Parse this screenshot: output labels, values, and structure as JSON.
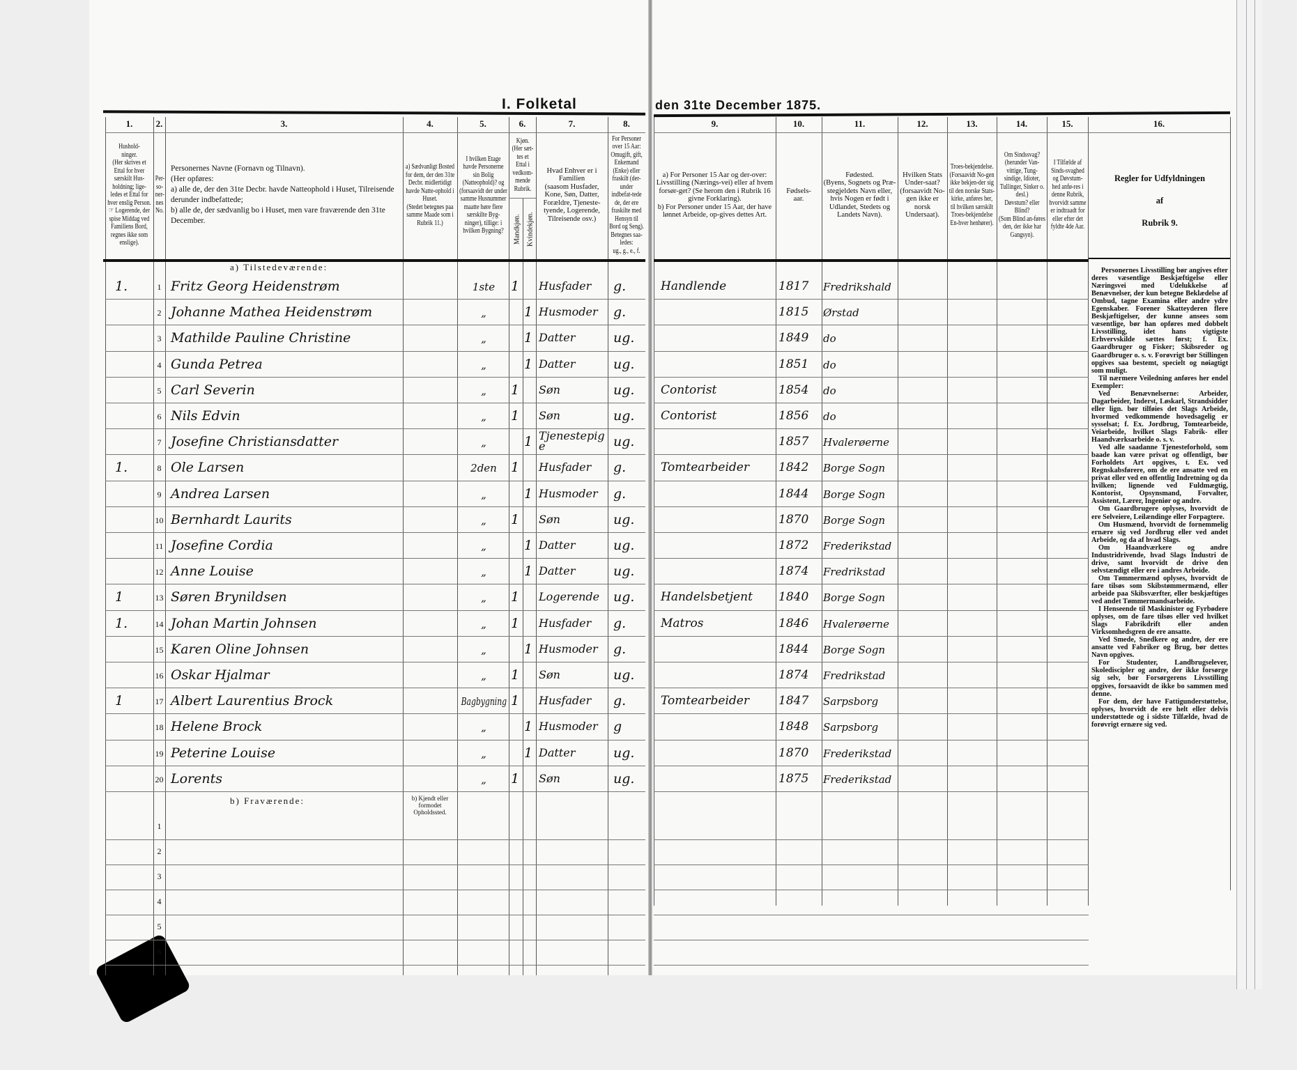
{
  "title_left": "I. Folketal",
  "title_right": "den 31te December 1875.",
  "columns": [
    {
      "num": "1.",
      "text": "Hushold-\nninger.\n(Her skrives et Ettal for hver særskilt Hus-holdning; lige-ledes et Ettal for hver enslig Person.\n☞ Logerende, der spise Middag ved Familiens Bord, regnes ikke som enslige)."
    },
    {
      "num": "2.",
      "text": "Per-\nso-\nner-\nnes\nNo."
    },
    {
      "num": "3.",
      "text": "Personernes Navne (Fornavn og Tilnavn).\n(Her opføres:\na) alle de, der den 31te Decbr. havde Natteophold i Huset, Tilreisende derunder indbefattede;\nb) alle de, der sædvanlig bo i Huset, men vare fraværende den 31te December."
    },
    {
      "num": "4.",
      "text": "a) Sædvanligt Bosted for dem, der den 31te Decbr. midlertidigt havde Natte-ophold i Huset.\n(Stedet betegnes paa samme Maade som i Rubrik 11.)"
    },
    {
      "num": "5.",
      "text": "I hvilken Etage havde Personerne sin Bolig (Natteophold)? og (forsaavidt der under samme Husnummer maatte høre flere særskilte Byg-ninger), tillige: i hvilken Bygning?"
    },
    {
      "num": "6.",
      "text": "Kjøn.\n(Her sæt-tes et Ettal i vedkom-mende Rubrik."
    },
    {
      "num": "7.",
      "text": "Hvad Enhver er i Familien\n(saasom Husfader, Kone, Søn, Datter, Forældre, Tjeneste-tyende, Logerende, Tilreisende osv.)"
    },
    {
      "num": "8.",
      "text": "For Personer over 15 Aar: Omugift, gift, Enkemand (Enke) eller fraskilt (der-under indbefat-tede de, der ere fraskilte med Hensyn til Bord og Seng).\nBetegnes saa-ledes:\nug., g., e., f."
    },
    {
      "num": "9.",
      "text": "a) For Personer 15 Aar og der-over: Livsstilling (Nærings-vei) eller af hvem forsør-get? (Se herom den i Rubrik 16 givne Forklaring).\nb) For Personer under 15 Aar, der have lønnet Arbeide, op-gives dettes Art."
    },
    {
      "num": "10.",
      "text": "Fødsels-\naar."
    },
    {
      "num": "11.",
      "text": "Fødested.\n(Byens, Sognets og Præ-stegjeldets Navn eller, hvis Nogen er født i Udlandet, Stedets og Landets Navn)."
    },
    {
      "num": "12.",
      "text": "Hvilken Stats Under-saat?\n(forsaavidt No-gen ikke er norsk Undersaat)."
    },
    {
      "num": "13.",
      "text": "Troes-bekjendelse.\n(Forsaavidt No-gen ikke bekjen-der sig til den norske Stats-kirke, anføres her, til hvilken særskilt Troes-bekjendelse En-hver henhører)."
    },
    {
      "num": "14.",
      "text": "Om Sindssvag? (herunder Van-vittige, Tung-sindige, Idioter, Tullinger, Sinker o. desl.)\nDøvstum? eller Blind?\n(Som Blind an-føres den, der ikke har Gangsyn)."
    },
    {
      "num": "15.",
      "text": "I Tilfælde af Sinds-svaghed og Døvstum-hed anfø-res i denne Rubrik, hvorvidt samme er indtraadt for eller efter det fyldte 4de Aar."
    },
    {
      "num": "16.",
      "text": ""
    }
  ],
  "sex_sub": {
    "male": "Mandkjøn.",
    "female": "Kvindekjøn."
  },
  "rules_title": "Regler for Udfyldningen\naf\nRubrik 9.",
  "rules": [
    "Personernes Livsstilling bør angives efter deres væsentlige Beskjæftigelse eller Næringsvei med Udelukkelse af Benævnelser, der kun betegne Beklædelse af Ombud, tagne Examina eller andre ydre Egenskaber. Forener Skatteyderen flere Beskjæftigelser, der kunne ansees som væsentlige, bør han opføres med dobbelt Livsstilling, idet hans vigtigste Erhvervskilde sættes først; f. Ex. Gaardbruger og Fisker; Skibsreder og Gaardbruger o. s. v. Forøvrigt bør Stillingen opgives saa bestemt, specielt og nøiagtigt som muligt.",
    "Til nærmere Veiledning anføres her endel Exempler:",
    "Ved Benævnelserne: Arbeider, Dagarbeider, Inderst, Løskarl, Strandsidder eller lign. bør tilføies det Slags Arbeide, hvormed vedkommende hovedsagelig er sysselsat; f. Ex. Jordbrug, Tomtearbeide, Veiarbeide, hvilket Slags Fabrik- eller Haandværksarbeide o. s. v.",
    "Ved alle saadanne Tjenesteforhold, som baade kan være privat og offentligt, bør Forholdets Art opgives, t. Ex. ved Regnskabsførere, om de ere ansatte ved en privat eller ved en offentlig Indretning og da hvilken; lignende ved Fuldmægtig, Kontorist, Opsynsmand, Forvalter, Assistent, Lærer, Ingeniør og andre.",
    "Om Gaardbrugere oplyses, hvorvidt de ere Selveiere, Leilændinge eller Forpagtere.",
    "Om Husmænd, hvorvidt de fornemmelig ernære sig ved Jordbrug eller ved andet Arbeide, og da af hvad Slags.",
    "Om Haandværkere og andre Industridrivende, hvad Slags Industri de drive, samt hvorvidt de drive den selvstændigt eller ere i andres Arbeide.",
    "Om Tømmermænd oplyses, hvorvidt de fare tilsøs som Skibstømmermænd, eller arbeide paa Skibsværfter, eller beskjæftiges ved andet Tømmermandsarbeide.",
    "I Henseende til Maskinister og Fyrbødere oplyses, om de fare tilsøs eller ved hvilket Slags Fabrikdrift eller anden Virksomhedsgren de ere ansatte.",
    "Ved Smede, Snedkere og andre, der ere ansatte ved Fabriker og Brug, bør dettes Navn opgives.",
    "For Studenter, Landbrugselever, Skolediscipler og andre, der ikke forsørge sig selv, bør Forsørgerens Livsstilling opgives, forsaavidt de ikke bo sammen med denne.",
    "For dem, der have Fattigunderstøttelse, oplyses, hvorvidt de ere helt eller delvis understøttede og i sidste Tilfælde, hvad de forøvrigt ernære sig ved."
  ],
  "section_present": "a) Tilstedeværende:",
  "section_absent": "b) Fraværende:",
  "absent_col4_note": "b) Kjendt eller formodet Opholdssted.",
  "absent_numbers": [
    "1",
    "2",
    "3",
    "4",
    "5",
    "6"
  ],
  "persons": [
    {
      "hh": "1.",
      "no": "1",
      "name": "Fritz Georg Heidenstrøm",
      "etage": "1ste",
      "male": "1",
      "female": "",
      "role": "Husfader",
      "civil": "g.",
      "occupation": "Handlende",
      "year": "1817",
      "birthplace": "Fredrikshald"
    },
    {
      "hh": "",
      "no": "2",
      "name": "Johanne Mathea Heidenstrøm",
      "etage": "„",
      "male": "",
      "female": "1",
      "role": "Husmoder",
      "civil": "g.",
      "occupation": "",
      "year": "1815",
      "birthplace": "Ørstad"
    },
    {
      "hh": "",
      "no": "3",
      "name": "Mathilde Pauline Christine",
      "etage": "„",
      "male": "",
      "female": "1",
      "role": "Datter",
      "civil": "ug.",
      "occupation": "",
      "year": "1849",
      "birthplace": "do"
    },
    {
      "hh": "",
      "no": "4",
      "name": "Gunda Petrea",
      "etage": "„",
      "male": "",
      "female": "1",
      "role": "Datter",
      "civil": "ug.",
      "occupation": "",
      "year": "1851",
      "birthplace": "do"
    },
    {
      "hh": "",
      "no": "5",
      "name": "Carl Severin",
      "etage": "„",
      "male": "1",
      "female": "",
      "role": "Søn",
      "civil": "ug.",
      "occupation": "Contorist",
      "year": "1854",
      "birthplace": "do"
    },
    {
      "hh": "",
      "no": "6",
      "name": "Nils Edvin",
      "etage": "„",
      "male": "1",
      "female": "",
      "role": "Søn",
      "civil": "ug.",
      "occupation": "Contorist",
      "year": "1856",
      "birthplace": "do"
    },
    {
      "hh": "",
      "no": "7",
      "name": "Josefine Christiansdatter",
      "etage": "„",
      "male": "",
      "female": "1",
      "role": "Tjenestepige",
      "civil": "ug.",
      "occupation": "",
      "year": "1857",
      "birthplace": "Hvalerøerne"
    },
    {
      "hh": "1.",
      "no": "8",
      "name": "Ole Larsen",
      "etage": "2den",
      "male": "1",
      "female": "",
      "role": "Husfader",
      "civil": "g.",
      "occupation": "Tomtearbeider",
      "year": "1842",
      "birthplace": "Borge Sogn"
    },
    {
      "hh": "",
      "no": "9",
      "name": "Andrea Larsen",
      "etage": "„",
      "male": "",
      "female": "1",
      "role": "Husmoder",
      "civil": "g.",
      "occupation": "",
      "year": "1844",
      "birthplace": "Borge Sogn"
    },
    {
      "hh": "",
      "no": "10",
      "name": "Bernhardt Laurits",
      "etage": "„",
      "male": "1",
      "female": "",
      "role": "Søn",
      "civil": "ug.",
      "occupation": "",
      "year": "1870",
      "birthplace": "Borge Sogn"
    },
    {
      "hh": "",
      "no": "11",
      "name": "Josefine Cordia",
      "etage": "„",
      "male": "",
      "female": "1",
      "role": "Datter",
      "civil": "ug.",
      "occupation": "",
      "year": "1872",
      "birthplace": "Frederikstad"
    },
    {
      "hh": "",
      "no": "12",
      "name": "Anne Louise",
      "etage": "„",
      "male": "",
      "female": "1",
      "role": "Datter",
      "civil": "ug.",
      "occupation": "",
      "year": "1874",
      "birthplace": "Fredrikstad"
    },
    {
      "hh": "1",
      "no": "13",
      "name": "Søren Brynildsen",
      "etage": "„",
      "male": "1",
      "female": "",
      "role": "Logerende",
      "civil": "ug.",
      "occupation": "Handelsbetjent",
      "year": "1840",
      "birthplace": "Borge Sogn"
    },
    {
      "hh": "1.",
      "no": "14",
      "name": "Johan Martin Johnsen",
      "etage": "„",
      "male": "1",
      "female": "",
      "role": "Husfader",
      "civil": "g.",
      "occupation": "Matros",
      "year": "1846",
      "birthplace": "Hvalerøerne"
    },
    {
      "hh": "",
      "no": "15",
      "name": "Karen Oline Johnsen",
      "etage": "„",
      "male": "",
      "female": "1",
      "role": "Husmoder",
      "civil": "g.",
      "occupation": "",
      "year": "1844",
      "birthplace": "Borge Sogn"
    },
    {
      "hh": "",
      "no": "16",
      "name": "Oskar Hjalmar",
      "etage": "„",
      "male": "1",
      "female": "",
      "role": "Søn",
      "civil": "ug.",
      "occupation": "",
      "year": "1874",
      "birthplace": "Fredrikstad"
    },
    {
      "hh": "1",
      "no": "17",
      "name": "Albert Laurentius Brock",
      "etage": "Bagbygning",
      "male": "1",
      "female": "",
      "role": "Husfader",
      "civil": "g.",
      "occupation": "Tomtearbeider",
      "year": "1847",
      "birthplace": "Sarpsborg"
    },
    {
      "hh": "",
      "no": "18",
      "name": "Helene Brock",
      "etage": "„",
      "male": "",
      "female": "1",
      "role": "Husmoder",
      "civil": "g",
      "occupation": "",
      "year": "1848",
      "birthplace": "Sarpsborg"
    },
    {
      "hh": "",
      "no": "19",
      "name": "Peterine Louise",
      "etage": "„",
      "male": "",
      "female": "1",
      "role": "Datter",
      "civil": "ug.",
      "occupation": "",
      "year": "1870",
      "birthplace": "Frederikstad"
    },
    {
      "hh": "",
      "no": "20",
      "name": "Lorents",
      "etage": "„",
      "male": "1",
      "female": "",
      "role": "Søn",
      "civil": "ug.",
      "occupation": "",
      "year": "1875",
      "birthplace": "Frederikstad"
    }
  ]
}
